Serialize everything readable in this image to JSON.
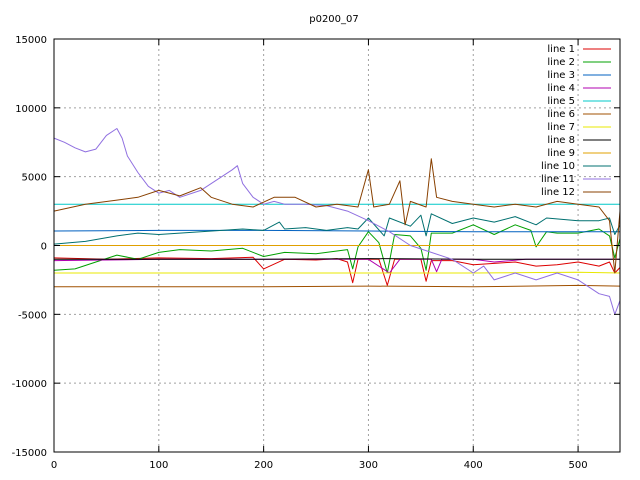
{
  "chart_data": {
    "type": "line",
    "title": "p0200_07",
    "xlabel": "",
    "ylabel": "",
    "xlim": [
      0,
      540
    ],
    "ylim": [
      -15000,
      15000
    ],
    "xticks": [
      0,
      100,
      200,
      300,
      400,
      500
    ],
    "yticks": [
      -15000,
      -10000,
      -5000,
      0,
      5000,
      10000,
      15000
    ],
    "grid": true,
    "legend_position": "top-right",
    "series": [
      {
        "name": "line 1",
        "color": "#dd0000",
        "points": [
          [
            0,
            -900
          ],
          [
            50,
            -1000
          ],
          [
            100,
            -900
          ],
          [
            150,
            -950
          ],
          [
            190,
            -850
          ],
          [
            200,
            -1700
          ],
          [
            220,
            -1000
          ],
          [
            250,
            -1050
          ],
          [
            270,
            -950
          ],
          [
            280,
            -1200
          ],
          [
            285,
            -2700
          ],
          [
            290,
            -1000
          ],
          [
            300,
            -1000
          ],
          [
            310,
            -1000
          ],
          [
            318,
            -2900
          ],
          [
            325,
            -1000
          ],
          [
            340,
            -1000
          ],
          [
            350,
            -1000
          ],
          [
            355,
            -2600
          ],
          [
            360,
            -1100
          ],
          [
            380,
            -1100
          ],
          [
            400,
            -1400
          ],
          [
            420,
            -1300
          ],
          [
            440,
            -1200
          ],
          [
            460,
            -1500
          ],
          [
            480,
            -1400
          ],
          [
            500,
            -1200
          ],
          [
            520,
            -1500
          ],
          [
            530,
            -1200
          ],
          [
            535,
            -2000
          ],
          [
            540,
            -1600
          ]
        ]
      },
      {
        "name": "line 2",
        "color": "#00a000",
        "points": [
          [
            0,
            -1800
          ],
          [
            20,
            -1700
          ],
          [
            40,
            -1200
          ],
          [
            60,
            -700
          ],
          [
            80,
            -1000
          ],
          [
            100,
            -500
          ],
          [
            120,
            -300
          ],
          [
            150,
            -400
          ],
          [
            180,
            -200
          ],
          [
            200,
            -800
          ],
          [
            220,
            -500
          ],
          [
            250,
            -600
          ],
          [
            280,
            -300
          ],
          [
            285,
            -1700
          ],
          [
            290,
            -100
          ],
          [
            300,
            1000
          ],
          [
            310,
            200
          ],
          [
            318,
            -2000
          ],
          [
            325,
            800
          ],
          [
            340,
            700
          ],
          [
            350,
            -200
          ],
          [
            355,
            -1800
          ],
          [
            360,
            900
          ],
          [
            380,
            900
          ],
          [
            400,
            1500
          ],
          [
            420,
            800
          ],
          [
            440,
            1500
          ],
          [
            455,
            1100
          ],
          [
            460,
            -100
          ],
          [
            470,
            1000
          ],
          [
            480,
            900
          ],
          [
            500,
            900
          ],
          [
            520,
            1200
          ],
          [
            530,
            700
          ],
          [
            535,
            -900
          ],
          [
            540,
            500
          ]
        ]
      },
      {
        "name": "line 3",
        "color": "#0060c0",
        "points": [
          [
            0,
            1050
          ],
          [
            100,
            1100
          ],
          [
            200,
            1100
          ],
          [
            300,
            1050
          ],
          [
            400,
            1000
          ],
          [
            500,
            1000
          ],
          [
            540,
            1000
          ]
        ]
      },
      {
        "name": "line 4",
        "color": "#b000b0",
        "points": [
          [
            0,
            -1100
          ],
          [
            50,
            -1050
          ],
          [
            100,
            -1000
          ],
          [
            150,
            -1000
          ],
          [
            200,
            -1000
          ],
          [
            250,
            -1000
          ],
          [
            300,
            -1000
          ],
          [
            320,
            -2000
          ],
          [
            330,
            -1000
          ],
          [
            360,
            -1000
          ],
          [
            365,
            -1900
          ],
          [
            370,
            -1000
          ],
          [
            400,
            -1000
          ],
          [
            420,
            -1200
          ],
          [
            450,
            -1000
          ],
          [
            500,
            -1000
          ],
          [
            540,
            -1000
          ]
        ]
      },
      {
        "name": "line 5",
        "color": "#00c8c8",
        "points": [
          [
            0,
            3000
          ],
          [
            100,
            3000
          ],
          [
            200,
            3000
          ],
          [
            300,
            3000
          ],
          [
            400,
            3000
          ],
          [
            500,
            3000
          ],
          [
            540,
            3000
          ]
        ]
      },
      {
        "name": "line 6",
        "color": "#a05000",
        "points": [
          [
            0,
            -3000
          ],
          [
            100,
            -3000
          ],
          [
            200,
            -3000
          ],
          [
            300,
            -2950
          ],
          [
            400,
            -3000
          ],
          [
            500,
            -2900
          ],
          [
            540,
            -2950
          ]
        ]
      },
      {
        "name": "line 7",
        "color": "#e8e800",
        "points": [
          [
            0,
            -2000
          ],
          [
            100,
            -2000
          ],
          [
            200,
            -2000
          ],
          [
            300,
            -2000
          ],
          [
            400,
            -2000
          ],
          [
            500,
            -1950
          ],
          [
            540,
            -2000
          ]
        ]
      },
      {
        "name": "line 8",
        "color": "#000000",
        "points": [
          [
            0,
            -1000
          ],
          [
            100,
            -1000
          ],
          [
            200,
            -1000
          ],
          [
            300,
            -950
          ],
          [
            400,
            -1000
          ],
          [
            500,
            -1000
          ],
          [
            540,
            -1000
          ]
        ]
      },
      {
        "name": "line 9",
        "color": "#e0a000",
        "points": [
          [
            0,
            0
          ],
          [
            100,
            0
          ],
          [
            200,
            0
          ],
          [
            300,
            0
          ],
          [
            400,
            0
          ],
          [
            420,
            0
          ],
          [
            440,
            0
          ],
          [
            480,
            0
          ],
          [
            500,
            0
          ],
          [
            540,
            0
          ]
        ]
      },
      {
        "name": "line 10",
        "color": "#007070",
        "points": [
          [
            0,
            100
          ],
          [
            30,
            300
          ],
          [
            60,
            700
          ],
          [
            80,
            900
          ],
          [
            100,
            800
          ],
          [
            120,
            900
          ],
          [
            140,
            1000
          ],
          [
            160,
            1100
          ],
          [
            180,
            1200
          ],
          [
            200,
            1100
          ],
          [
            215,
            1700
          ],
          [
            220,
            1200
          ],
          [
            240,
            1300
          ],
          [
            260,
            1100
          ],
          [
            280,
            1300
          ],
          [
            290,
            1200
          ],
          [
            300,
            2000
          ],
          [
            315,
            700
          ],
          [
            320,
            2000
          ],
          [
            340,
            1400
          ],
          [
            350,
            2200
          ],
          [
            355,
            700
          ],
          [
            360,
            2300
          ],
          [
            380,
            1600
          ],
          [
            400,
            2000
          ],
          [
            420,
            1700
          ],
          [
            440,
            2100
          ],
          [
            460,
            1500
          ],
          [
            470,
            2000
          ],
          [
            500,
            1800
          ],
          [
            520,
            1800
          ],
          [
            530,
            2000
          ],
          [
            535,
            800
          ],
          [
            540,
            1500
          ]
        ]
      },
      {
        "name": "line 11",
        "color": "#9070e0",
        "points": [
          [
            0,
            7800
          ],
          [
            10,
            7500
          ],
          [
            20,
            7100
          ],
          [
            30,
            6800
          ],
          [
            40,
            7000
          ],
          [
            50,
            8000
          ],
          [
            60,
            8500
          ],
          [
            65,
            7800
          ],
          [
            70,
            6500
          ],
          [
            80,
            5300
          ],
          [
            90,
            4300
          ],
          [
            100,
            3800
          ],
          [
            110,
            4000
          ],
          [
            120,
            3500
          ],
          [
            140,
            4000
          ],
          [
            150,
            4500
          ],
          [
            160,
            5000
          ],
          [
            170,
            5500
          ],
          [
            175,
            5800
          ],
          [
            180,
            4500
          ],
          [
            190,
            3500
          ],
          [
            200,
            3000
          ],
          [
            210,
            3200
          ],
          [
            220,
            3000
          ],
          [
            240,
            3000
          ],
          [
            260,
            2900
          ],
          [
            280,
            2500
          ],
          [
            300,
            1800
          ],
          [
            320,
            1000
          ],
          [
            340,
            0
          ],
          [
            360,
            -500
          ],
          [
            380,
            -1000
          ],
          [
            400,
            -2000
          ],
          [
            410,
            -1500
          ],
          [
            420,
            -2500
          ],
          [
            440,
            -2000
          ],
          [
            460,
            -2500
          ],
          [
            480,
            -2000
          ],
          [
            500,
            -2500
          ],
          [
            510,
            -3000
          ],
          [
            520,
            -3500
          ],
          [
            530,
            -3700
          ],
          [
            535,
            -5000
          ],
          [
            540,
            -4000
          ]
        ]
      },
      {
        "name": "line 12",
        "color": "#884000",
        "points": [
          [
            0,
            2500
          ],
          [
            30,
            3000
          ],
          [
            60,
            3300
          ],
          [
            80,
            3500
          ],
          [
            100,
            4000
          ],
          [
            120,
            3600
          ],
          [
            140,
            4200
          ],
          [
            150,
            3500
          ],
          [
            170,
            3000
          ],
          [
            190,
            2800
          ],
          [
            210,
            3500
          ],
          [
            230,
            3500
          ],
          [
            250,
            2800
          ],
          [
            270,
            3000
          ],
          [
            290,
            2800
          ],
          [
            300,
            5500
          ],
          [
            305,
            2800
          ],
          [
            320,
            3000
          ],
          [
            330,
            4700
          ],
          [
            335,
            1500
          ],
          [
            340,
            3200
          ],
          [
            355,
            2800
          ],
          [
            360,
            6300
          ],
          [
            365,
            3500
          ],
          [
            380,
            3200
          ],
          [
            400,
            3000
          ],
          [
            420,
            2800
          ],
          [
            440,
            3000
          ],
          [
            460,
            2800
          ],
          [
            480,
            3200
          ],
          [
            500,
            3000
          ],
          [
            520,
            2800
          ],
          [
            530,
            1800
          ],
          [
            535,
            -2000
          ],
          [
            540,
            2500
          ]
        ]
      }
    ]
  }
}
